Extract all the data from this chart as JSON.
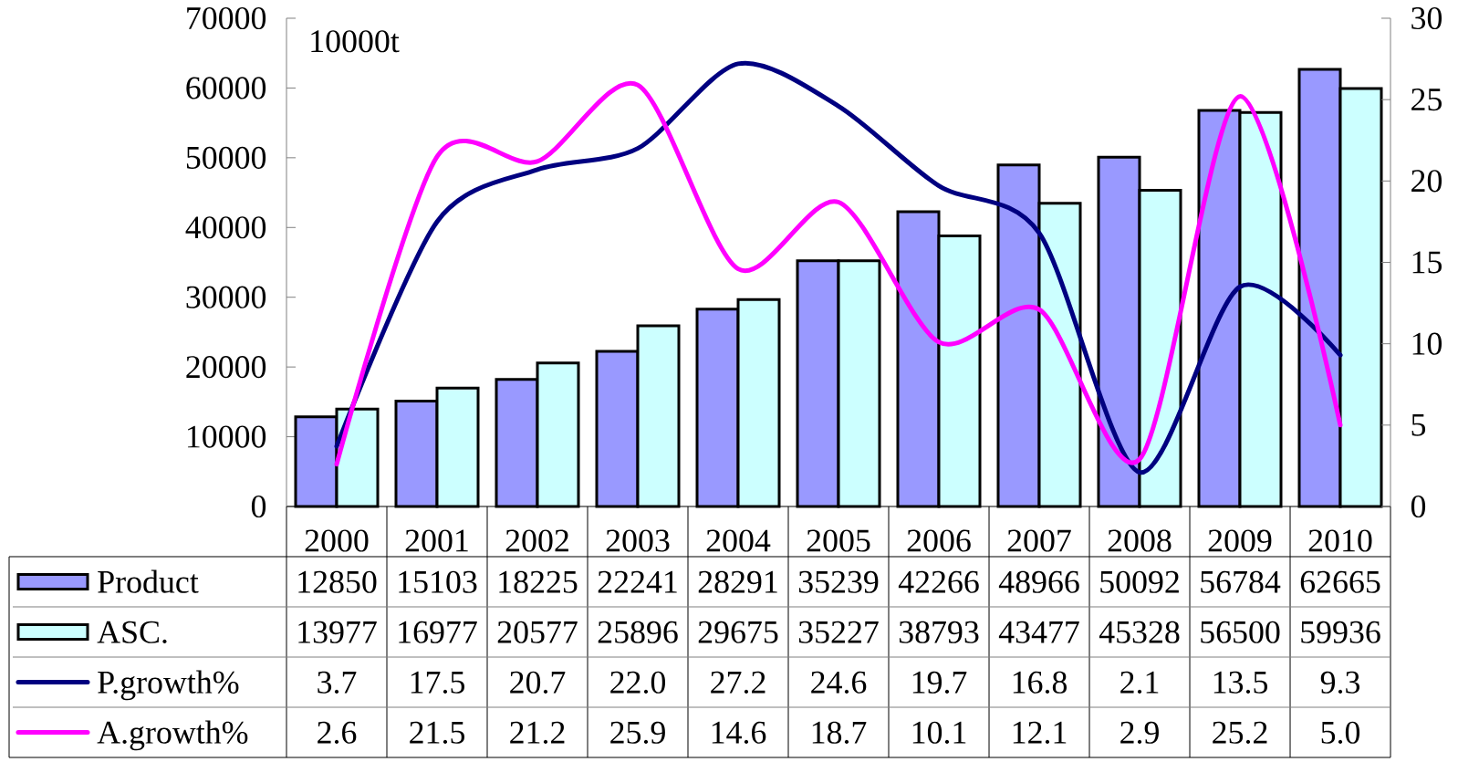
{
  "chart_data": {
    "type": "bar",
    "ylabel": "10000t",
    "categories": [
      "2000",
      "2001",
      "2002",
      "2003",
      "2004",
      "2005",
      "2006",
      "2007",
      "2008",
      "2009",
      "2010"
    ],
    "series": [
      {
        "name": "Product",
        "color": "#9999ff",
        "values": [
          12850,
          15103,
          18225,
          22241,
          28291,
          35239,
          42266,
          48966,
          50092,
          56784,
          62665
        ],
        "value_labels": [
          "12850",
          "15103",
          "18225",
          "22241",
          "28291",
          "35239",
          "42266",
          "48966",
          "50092",
          "56784",
          "62665"
        ]
      },
      {
        "name": "ASC.",
        "color": "#ccffff",
        "values": [
          13977,
          16977,
          20577,
          25896,
          29675,
          35227,
          38793,
          43477,
          45328,
          56500,
          59936
        ],
        "value_labels": [
          "13977",
          "16977",
          "20577",
          "25896",
          "29675",
          "35227",
          "38793",
          "43477",
          "45328",
          "56500",
          "59936"
        ]
      },
      {
        "name": "P.growth%",
        "type": "line",
        "axis": "y2",
        "color": "#000080",
        "values": [
          3.7,
          17.5,
          20.7,
          22.0,
          27.2,
          24.6,
          19.7,
          16.8,
          2.1,
          13.5,
          9.3
        ],
        "value_labels": [
          "3.7",
          "17.5",
          "20.7",
          "22.0",
          "27.2",
          "24.6",
          "19.7",
          "16.8",
          "2.1",
          "13.5",
          "9.3"
        ]
      },
      {
        "name": "A.growth%",
        "type": "line",
        "axis": "y2",
        "color": "#ff00ff",
        "values": [
          2.6,
          21.5,
          21.2,
          25.9,
          14.6,
          18.7,
          10.1,
          12.1,
          2.9,
          25.2,
          5.0
        ],
        "value_labels": [
          "2.6",
          "21.5",
          "21.2",
          "25.9",
          "14.6",
          "18.7",
          "10.1",
          "12.1",
          "2.9",
          "25.2",
          "5.0"
        ]
      }
    ],
    "ylim": [
      0,
      70000
    ],
    "yticks": [
      0,
      10000,
      20000,
      30000,
      40000,
      50000,
      60000,
      70000
    ],
    "y2lim": [
      0,
      30
    ],
    "y2ticks": [
      0,
      5,
      10,
      15,
      20,
      25,
      30
    ],
    "legend": "bottom"
  }
}
